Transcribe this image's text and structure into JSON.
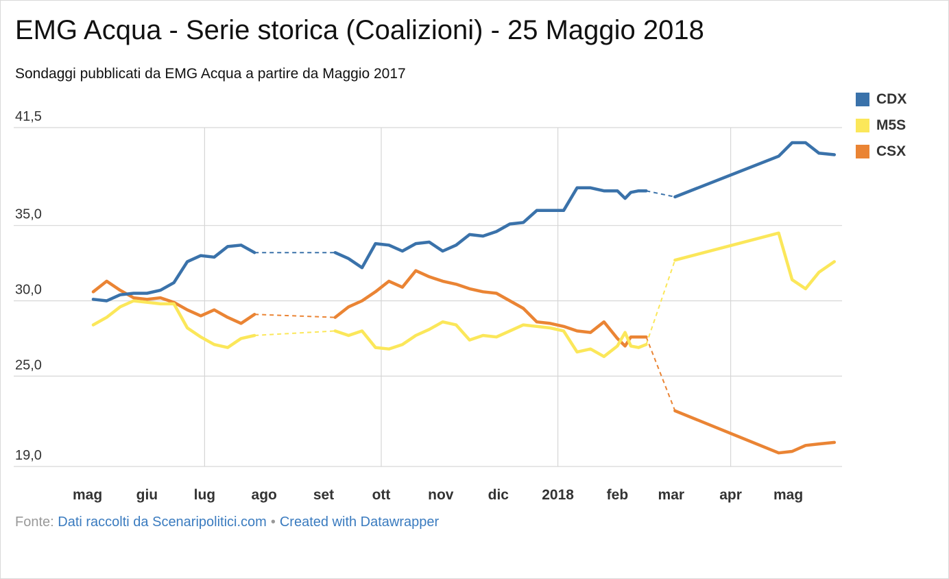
{
  "title": "EMG Acqua - Serie storica (Coalizioni) - 25 Maggio 2018",
  "subtitle": "Sondaggi pubblicati da EMG Acqua a partire da Maggio 2017",
  "footer": {
    "prefix": "Fonte:",
    "source_link": "Dati raccolti da Scenaripolitici.com",
    "separator": "•",
    "credit_link": "Created with Datawrapper"
  },
  "colors": {
    "CDX": "#3a72aa",
    "M5S": "#fbe75a",
    "CSX": "#ea8434",
    "grid": "#d6d6d6"
  },
  "chart_data": {
    "type": "line",
    "title": "EMG Acqua - Serie storica (Coalizioni) - 25 Maggio 2018",
    "subtitle": "Sondaggi pubblicati da EMG Acqua a partire da Maggio 2017",
    "ylim": [
      19.0,
      41.5
    ],
    "y_ticks": [
      "41,5",
      "35,0",
      "30,0",
      "25,0",
      "19,0"
    ],
    "y_tick_values": [
      41.5,
      35.0,
      30.0,
      25.0,
      19.0
    ],
    "x_tick_labels": [
      "mag",
      "giu",
      "lug",
      "ago",
      "set",
      "ott",
      "nov",
      "dic",
      "2018",
      "feb",
      "mar",
      "apr",
      "mag"
    ],
    "x_tick_dates": [
      "2017-05-01",
      "2017-06-01",
      "2017-07-01",
      "2017-08-01",
      "2017-09-01",
      "2017-10-01",
      "2017-11-01",
      "2017-12-01",
      "2018-01-01",
      "2018-02-01",
      "2018-03-01",
      "2018-04-01",
      "2018-05-01"
    ],
    "xlim": [
      "2017-04-24",
      "2018-05-29"
    ],
    "vertical_grid_dates": [
      "2017-07-01",
      "2017-10-01",
      "2018-01-01",
      "2018-04-01"
    ],
    "gaps": [
      {
        "from": "2017-07-27",
        "to": "2017-09-07"
      },
      {
        "from": "2018-02-16",
        "to": "2018-03-03"
      }
    ],
    "legend": {
      "position": "top-right"
    },
    "series": [
      {
        "name": "CDX",
        "points": [
          [
            "2017-05-04",
            30.1
          ],
          [
            "2017-05-11",
            30.0
          ],
          [
            "2017-05-18",
            30.4
          ],
          [
            "2017-05-25",
            30.5
          ],
          [
            "2017-06-01",
            30.5
          ],
          [
            "2017-06-08",
            30.7
          ],
          [
            "2017-06-15",
            31.2
          ],
          [
            "2017-06-22",
            32.6
          ],
          [
            "2017-06-29",
            33.0
          ],
          [
            "2017-07-06",
            32.9
          ],
          [
            "2017-07-13",
            33.6
          ],
          [
            "2017-07-20",
            33.7
          ],
          [
            "2017-07-27",
            33.2
          ],
          [
            "2017-09-07",
            33.2
          ],
          [
            "2017-09-14",
            32.8
          ],
          [
            "2017-09-21",
            32.2
          ],
          [
            "2017-09-28",
            33.8
          ],
          [
            "2017-10-05",
            33.7
          ],
          [
            "2017-10-12",
            33.3
          ],
          [
            "2017-10-19",
            33.8
          ],
          [
            "2017-10-26",
            33.9
          ],
          [
            "2017-11-02",
            33.3
          ],
          [
            "2017-11-09",
            33.7
          ],
          [
            "2017-11-16",
            34.4
          ],
          [
            "2017-11-23",
            34.3
          ],
          [
            "2017-11-30",
            34.6
          ],
          [
            "2017-12-07",
            35.1
          ],
          [
            "2017-12-14",
            35.2
          ],
          [
            "2017-12-21",
            36.0
          ],
          [
            "2017-12-28",
            36.0
          ],
          [
            "2018-01-04",
            36.0
          ],
          [
            "2018-01-11",
            37.5
          ],
          [
            "2018-01-18",
            37.5
          ],
          [
            "2018-01-25",
            37.3
          ],
          [
            "2018-02-01",
            37.3
          ],
          [
            "2018-02-05",
            36.8
          ],
          [
            "2018-02-08",
            37.2
          ],
          [
            "2018-02-12",
            37.3
          ],
          [
            "2018-02-16",
            37.3
          ],
          [
            "2018-03-03",
            36.9
          ],
          [
            "2018-04-26",
            39.6
          ],
          [
            "2018-05-03",
            40.5
          ],
          [
            "2018-05-10",
            40.5
          ],
          [
            "2018-05-17",
            39.8
          ],
          [
            "2018-05-25",
            39.7
          ]
        ]
      },
      {
        "name": "M5S",
        "points": [
          [
            "2017-05-04",
            28.4
          ],
          [
            "2017-05-11",
            28.9
          ],
          [
            "2017-05-18",
            29.6
          ],
          [
            "2017-05-25",
            30.0
          ],
          [
            "2017-06-01",
            29.9
          ],
          [
            "2017-06-08",
            29.8
          ],
          [
            "2017-06-15",
            29.8
          ],
          [
            "2017-06-22",
            28.2
          ],
          [
            "2017-06-29",
            27.6
          ],
          [
            "2017-07-06",
            27.1
          ],
          [
            "2017-07-13",
            26.9
          ],
          [
            "2017-07-20",
            27.5
          ],
          [
            "2017-07-27",
            27.7
          ],
          [
            "2017-09-07",
            28.0
          ],
          [
            "2017-09-14",
            27.7
          ],
          [
            "2017-09-21",
            28.0
          ],
          [
            "2017-09-28",
            26.9
          ],
          [
            "2017-10-05",
            26.8
          ],
          [
            "2017-10-12",
            27.1
          ],
          [
            "2017-10-19",
            27.7
          ],
          [
            "2017-10-26",
            28.1
          ],
          [
            "2017-11-02",
            28.6
          ],
          [
            "2017-11-09",
            28.4
          ],
          [
            "2017-11-16",
            27.4
          ],
          [
            "2017-11-23",
            27.7
          ],
          [
            "2017-11-30",
            27.6
          ],
          [
            "2017-12-07",
            28.0
          ],
          [
            "2017-12-14",
            28.4
          ],
          [
            "2017-12-21",
            28.3
          ],
          [
            "2017-12-28",
            28.2
          ],
          [
            "2018-01-04",
            28.0
          ],
          [
            "2018-01-11",
            26.6
          ],
          [
            "2018-01-18",
            26.8
          ],
          [
            "2018-01-25",
            26.3
          ],
          [
            "2018-02-01",
            27.0
          ],
          [
            "2018-02-05",
            27.9
          ],
          [
            "2018-02-08",
            27.0
          ],
          [
            "2018-02-12",
            26.9
          ],
          [
            "2018-02-16",
            27.1
          ],
          [
            "2018-03-03",
            32.7
          ],
          [
            "2018-04-26",
            34.5
          ],
          [
            "2018-05-03",
            31.4
          ],
          [
            "2018-05-10",
            30.8
          ],
          [
            "2018-05-17",
            31.9
          ],
          [
            "2018-05-25",
            32.6
          ]
        ]
      },
      {
        "name": "CSX",
        "points": [
          [
            "2017-05-04",
            30.6
          ],
          [
            "2017-05-11",
            31.3
          ],
          [
            "2017-05-18",
            30.7
          ],
          [
            "2017-05-25",
            30.2
          ],
          [
            "2017-06-01",
            30.1
          ],
          [
            "2017-06-08",
            30.2
          ],
          [
            "2017-06-15",
            29.9
          ],
          [
            "2017-06-22",
            29.4
          ],
          [
            "2017-06-29",
            29.0
          ],
          [
            "2017-07-06",
            29.4
          ],
          [
            "2017-07-13",
            28.9
          ],
          [
            "2017-07-20",
            28.5
          ],
          [
            "2017-07-27",
            29.1
          ],
          [
            "2017-09-07",
            28.9
          ],
          [
            "2017-09-14",
            29.6
          ],
          [
            "2017-09-21",
            30.0
          ],
          [
            "2017-09-28",
            30.6
          ],
          [
            "2017-10-05",
            31.3
          ],
          [
            "2017-10-12",
            30.9
          ],
          [
            "2017-10-19",
            32.0
          ],
          [
            "2017-10-26",
            31.6
          ],
          [
            "2017-11-02",
            31.3
          ],
          [
            "2017-11-09",
            31.1
          ],
          [
            "2017-11-16",
            30.8
          ],
          [
            "2017-11-23",
            30.6
          ],
          [
            "2017-11-30",
            30.5
          ],
          [
            "2017-12-07",
            30.0
          ],
          [
            "2017-12-14",
            29.5
          ],
          [
            "2017-12-21",
            28.6
          ],
          [
            "2017-12-28",
            28.5
          ],
          [
            "2018-01-04",
            28.3
          ],
          [
            "2018-01-11",
            28.0
          ],
          [
            "2018-01-18",
            27.9
          ],
          [
            "2018-01-25",
            28.6
          ],
          [
            "2018-02-01",
            27.5
          ],
          [
            "2018-02-05",
            27.0
          ],
          [
            "2018-02-08",
            27.6
          ],
          [
            "2018-02-12",
            27.6
          ],
          [
            "2018-02-16",
            27.6
          ],
          [
            "2018-03-03",
            22.7
          ],
          [
            "2018-04-26",
            19.9
          ],
          [
            "2018-05-03",
            20.0
          ],
          [
            "2018-05-10",
            20.4
          ],
          [
            "2018-05-17",
            20.5
          ],
          [
            "2018-05-25",
            20.6
          ]
        ]
      }
    ]
  }
}
